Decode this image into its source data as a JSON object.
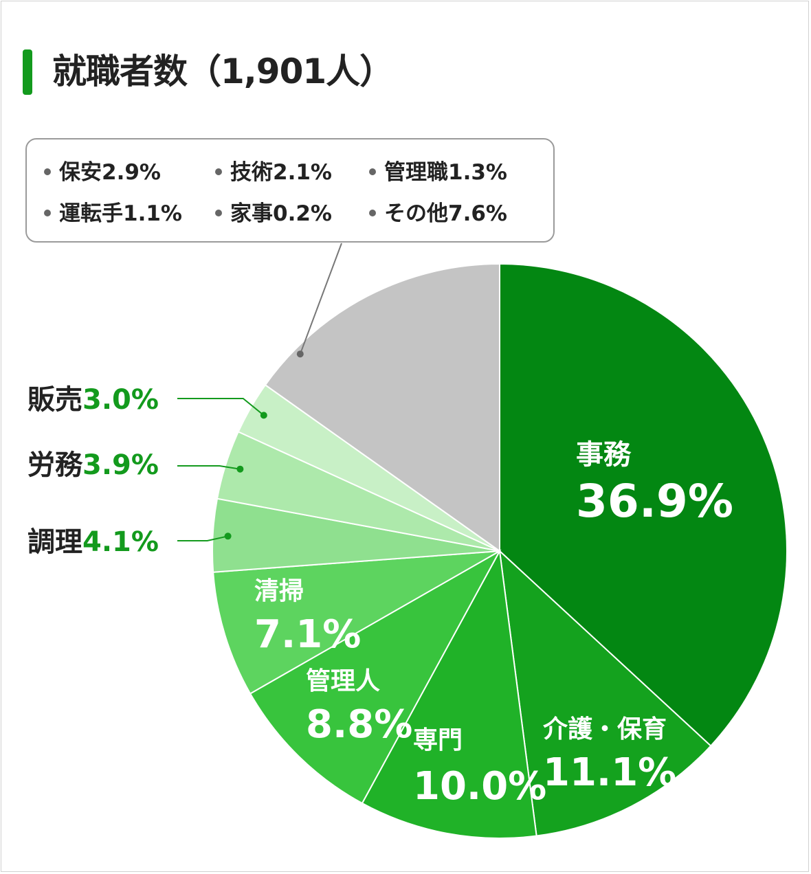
{
  "title": "就職者数（1,901人）",
  "colors": {
    "accent": "#139a1d"
  },
  "legend_box": {
    "items": [
      {
        "label": "保安",
        "value": "2.9%"
      },
      {
        "label": "技術",
        "value": "2.1%"
      },
      {
        "label": "管理職",
        "value": "1.3%"
      },
      {
        "label": "運転手",
        "value": "1.1%"
      },
      {
        "label": "家事",
        "value": "0.2%"
      },
      {
        "label": "その他",
        "value": "7.6%"
      }
    ]
  },
  "chart_data": {
    "type": "pie",
    "title": "就職者数（1,901人）",
    "slices": [
      {
        "label": "事務",
        "value": 36.9,
        "value_label": "36.9%",
        "color": "#038712"
      },
      {
        "label": "介護・保育",
        "value": 11.1,
        "value_label": "11.1%",
        "color": "#14a21e"
      },
      {
        "label": "専門",
        "value": 10.0,
        "value_label": "10.0%",
        "color": "#20b228"
      },
      {
        "label": "管理人",
        "value": 8.8,
        "value_label": "8.8%",
        "color": "#38c43d"
      },
      {
        "label": "清掃",
        "value": 7.1,
        "value_label": "7.1%",
        "color": "#5dd45f"
      },
      {
        "label": "調理",
        "value": 4.1,
        "value_label": "4.1%",
        "color": "#8fe08f"
      },
      {
        "label": "労務",
        "value": 3.9,
        "value_label": "3.9%",
        "color": "#ade9ab"
      },
      {
        "label": "販売",
        "value": 3.0,
        "value_label": "3.0%",
        "color": "#c8f0c6"
      },
      {
        "label": "",
        "value": 15.2,
        "value_label": "",
        "color": "#c4c4c4"
      }
    ]
  }
}
